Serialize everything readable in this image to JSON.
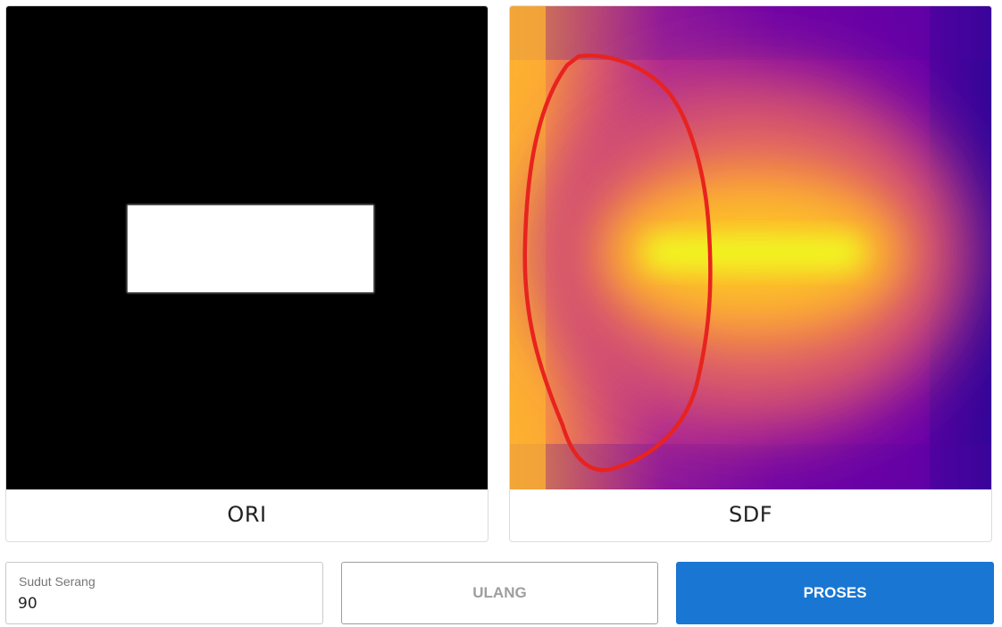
{
  "panels": {
    "ori": {
      "label": "ORI"
    },
    "sdf": {
      "label": "SDF"
    }
  },
  "controls": {
    "angle_field": {
      "label": "Sudut Serang",
      "value": "90"
    },
    "reset_label": "ULANG",
    "process_label": "PROSES"
  },
  "colors": {
    "accent": "#1976d2",
    "annotation": "#e8231f",
    "sdf_palette": [
      "#0d0887",
      "#7e03a8",
      "#cc4778",
      "#f89540",
      "#f0f921"
    ]
  }
}
